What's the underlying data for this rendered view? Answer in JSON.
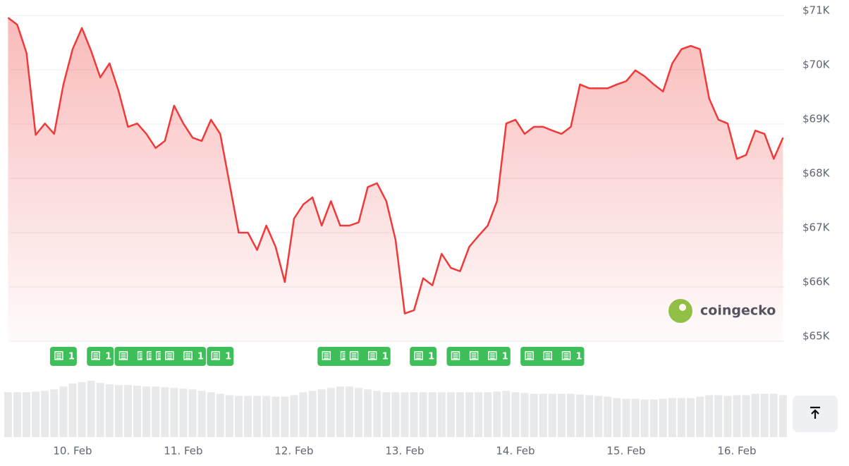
{
  "chart_data": {
    "type": "line",
    "color": "#f03a3a",
    "categories": [
      null,
      null,
      null,
      null,
      null,
      null,
      null,
      "10. Feb",
      null,
      null,
      null,
      null,
      null,
      null,
      null,
      null,
      null,
      null,
      null,
      "11. Feb",
      null,
      null,
      null,
      null,
      null,
      null,
      null,
      null,
      null,
      null,
      null,
      "12. Feb",
      null,
      null,
      null,
      null,
      null,
      null,
      null,
      null,
      null,
      null,
      null,
      "13. Feb",
      null,
      null,
      null,
      null,
      null,
      null,
      null,
      null,
      null,
      null,
      null,
      "14. Feb",
      null,
      null,
      null,
      null,
      null,
      null,
      null,
      null,
      null,
      null,
      null,
      "15. Feb",
      null,
      null,
      null,
      null,
      null,
      null,
      null,
      null,
      null,
      null,
      null,
      "16. Feb",
      null,
      null,
      null,
      null,
      null
    ],
    "values": [
      70960,
      70830,
      70310,
      68800,
      69010,
      68820,
      69730,
      70380,
      70770,
      70350,
      69860,
      70120,
      69600,
      68950,
      69010,
      68820,
      68560,
      68690,
      69340,
      69010,
      68750,
      68690,
      69080,
      68820,
      67910,
      67000,
      67000,
      66680,
      67130,
      66740,
      66090,
      67260,
      67520,
      67650,
      67130,
      67580,
      67130,
      67130,
      67190,
      67840,
      67910,
      67580,
      66870,
      65510,
      65570,
      66160,
      66030,
      66610,
      66350,
      66290,
      66740,
      66940,
      67130,
      67580,
      69010,
      69080,
      68820,
      68950,
      68950,
      68880,
      68820,
      68950,
      69730,
      69660,
      69660,
      69660,
      69730,
      69790,
      69990,
      69880,
      69730,
      69600,
      70120,
      70380,
      70440,
      70380,
      69470,
      69080,
      69010,
      68360,
      68430,
      68880,
      68820,
      68360,
      68750
    ],
    "volume": [
      62,
      62,
      62,
      63,
      64,
      66,
      70,
      74,
      76,
      78,
      75,
      73,
      72,
      72,
      71,
      70,
      70,
      69,
      68,
      67,
      66,
      64,
      62,
      60,
      58,
      57,
      57,
      57,
      57,
      56,
      56,
      58,
      62,
      64,
      66,
      68,
      70,
      70,
      68,
      66,
      64,
      62,
      62,
      62,
      62,
      62,
      62,
      62,
      62,
      62,
      62,
      62,
      62,
      63,
      64,
      62,
      61,
      60,
      60,
      60,
      60,
      60,
      59,
      58,
      57,
      56,
      54,
      53,
      53,
      52,
      52,
      53,
      54,
      54,
      54,
      56,
      58,
      58,
      57,
      58,
      58,
      60,
      60,
      60,
      58
    ],
    "news": {
      "at": [
        6,
        10,
        13,
        15,
        16,
        17,
        18,
        20,
        23,
        35,
        37,
        38,
        40,
        45,
        49,
        51,
        53,
        57,
        59,
        61
      ],
      "counts": [
        1,
        1,
        1,
        1,
        1,
        1,
        1,
        1,
        1,
        1,
        1,
        1,
        1,
        1,
        1,
        1,
        1,
        1,
        1,
        1
      ]
    },
    "ylim": [
      65000,
      71000
    ],
    "yticks": [
      {
        "value": 71000,
        "label": "$71K"
      },
      {
        "value": 70000,
        "label": "$70K"
      },
      {
        "value": 69000,
        "label": "$69K"
      },
      {
        "value": 68000,
        "label": "$68K"
      },
      {
        "value": 67000,
        "label": "$67K"
      },
      {
        "value": 66000,
        "label": "$66K"
      },
      {
        "value": 65000,
        "label": "$65K"
      }
    ],
    "grid": true,
    "watermark": "coingecko"
  }
}
